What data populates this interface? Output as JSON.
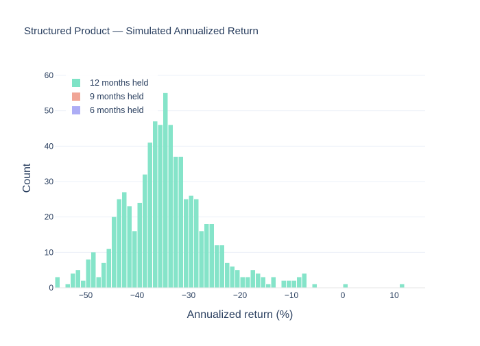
{
  "chart_data": {
    "type": "bar",
    "title": "Structured Product — Simulated Annualized Return",
    "xlabel": "Annualized return (%)",
    "ylabel": "Count",
    "xlim": [
      -56,
      16
    ],
    "ylim": [
      0,
      63
    ],
    "x_ticks": [
      -50,
      -40,
      -30,
      -20,
      -10,
      0,
      10
    ],
    "x_tick_labels": [
      "−50",
      "−40",
      "−30",
      "−20",
      "−10",
      "0",
      "10"
    ],
    "y_ticks": [
      0,
      10,
      20,
      30,
      40,
      50,
      60
    ],
    "y_tick_labels": [
      "0",
      "10",
      "20",
      "30",
      "40",
      "50",
      "60"
    ],
    "grid": true,
    "legend_position": "top-left",
    "bin_width": 1,
    "series": [
      {
        "name": "12 months held",
        "color": "#7ee3c6",
        "bins": [
          [
            -56,
            3
          ],
          [
            -54,
            1
          ],
          [
            -53,
            4
          ],
          [
            -52,
            5
          ],
          [
            -51,
            2
          ],
          [
            -50,
            8
          ],
          [
            -49,
            10
          ],
          [
            -48,
            3
          ],
          [
            -47,
            7
          ],
          [
            -46,
            11
          ],
          [
            -45,
            20
          ],
          [
            -44,
            25
          ],
          [
            -43,
            27
          ],
          [
            -42,
            23
          ],
          [
            -41,
            16
          ],
          [
            -40,
            24
          ],
          [
            -39,
            32
          ],
          [
            -38,
            41
          ],
          [
            -37,
            47
          ],
          [
            -36,
            46
          ],
          [
            -35,
            55
          ],
          [
            -34,
            46
          ],
          [
            -33,
            37
          ],
          [
            -32,
            37
          ],
          [
            -31,
            25
          ],
          [
            -30,
            26
          ],
          [
            -29,
            25
          ],
          [
            -28,
            16
          ],
          [
            -27,
            18
          ],
          [
            -26,
            18
          ],
          [
            -25,
            12
          ],
          [
            -24,
            12
          ],
          [
            -23,
            7
          ],
          [
            -22,
            6
          ],
          [
            -21,
            5
          ],
          [
            -20,
            3
          ],
          [
            -19,
            3
          ],
          [
            -18,
            5
          ],
          [
            -17,
            4
          ],
          [
            -16,
            3
          ],
          [
            -15,
            1
          ],
          [
            -14,
            3
          ],
          [
            -12,
            2
          ],
          [
            -11,
            2
          ],
          [
            -10,
            2
          ],
          [
            -9,
            3
          ],
          [
            -8,
            4
          ],
          [
            -6,
            1
          ],
          [
            0,
            1
          ],
          [
            11,
            1
          ]
        ]
      },
      {
        "name": "9 months held",
        "color": "#f0a596",
        "bins": []
      },
      {
        "name": "6 months held",
        "color": "#adadf5",
        "bins": []
      }
    ]
  }
}
